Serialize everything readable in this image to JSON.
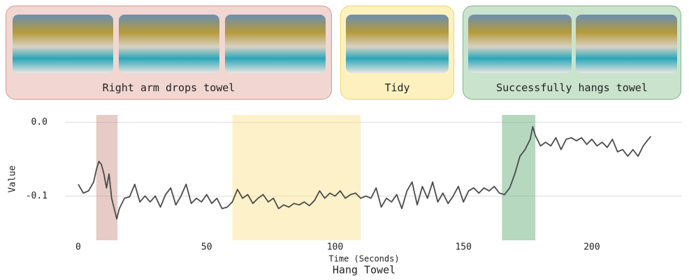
{
  "panels": [
    {
      "caption": "Right arm drops towel",
      "color": "#f1d6d1",
      "border": "#d9988e"
    },
    {
      "caption": "Tidy",
      "color": "#fdf1c0",
      "border": "#f2d660"
    },
    {
      "caption": "Successfully hangs towel",
      "color": "#c9e3cd",
      "border": "#7fb489"
    }
  ],
  "chart_data": {
    "type": "line",
    "title": "Hang Towel",
    "x_label": "Time (Seconds)",
    "y_label": "Value",
    "xlim": [
      -5,
      235
    ],
    "xticks": [
      0,
      50,
      100,
      150,
      200
    ],
    "ylim": [
      -0.16,
      0.01
    ],
    "yticks": [
      {
        "value": 0,
        "label": "0.0"
      },
      -0.1
    ],
    "grid": true,
    "highlights": [
      {
        "x": [
          7,
          15.3
        ],
        "color": "#c98b80"
      },
      {
        "x": [
          60,
          110
        ],
        "color": "#fbe08a"
      },
      {
        "x": [
          165,
          178
        ],
        "color": "#5aa872"
      }
    ],
    "x": [
      0,
      2,
      4,
      6,
      7,
      8,
      9,
      10,
      11,
      12,
      13,
      14,
      15,
      16,
      18,
      20,
      22,
      24,
      26,
      28,
      30,
      32,
      34,
      36,
      38,
      40,
      42,
      44,
      46,
      48,
      50,
      52,
      54,
      56,
      58,
      60,
      62,
      64,
      66,
      68,
      70,
      72,
      74,
      76,
      78,
      80,
      82,
      84,
      86,
      88,
      90,
      92,
      94,
      96,
      98,
      100,
      102,
      104,
      106,
      108,
      110,
      112,
      114,
      116,
      118,
      120,
      122,
      124,
      126,
      128,
      130,
      132,
      134,
      136,
      138,
      140,
      142,
      144,
      146,
      148,
      150,
      152,
      154,
      156,
      158,
      160,
      162,
      164,
      166,
      168,
      170,
      172,
      174,
      176,
      177,
      178,
      180,
      182,
      184,
      186,
      188,
      190,
      192,
      194,
      196,
      198,
      200,
      202,
      204,
      206,
      208,
      210,
      212,
      214,
      216,
      218,
      220,
      222,
      223
    ],
    "series": [
      {
        "name": "Value",
        "color": "#4a4a4a",
        "values": [
          -0.084,
          -0.096,
          -0.093,
          -0.081,
          -0.065,
          -0.053,
          -0.057,
          -0.07,
          -0.089,
          -0.07,
          -0.103,
          -0.117,
          -0.131,
          -0.117,
          -0.103,
          -0.101,
          -0.084,
          -0.108,
          -0.1,
          -0.108,
          -0.1,
          -0.115,
          -0.098,
          -0.089,
          -0.112,
          -0.1,
          -0.084,
          -0.11,
          -0.103,
          -0.108,
          -0.098,
          -0.11,
          -0.103,
          -0.117,
          -0.115,
          -0.108,
          -0.091,
          -0.103,
          -0.098,
          -0.11,
          -0.103,
          -0.098,
          -0.108,
          -0.103,
          -0.117,
          -0.112,
          -0.115,
          -0.11,
          -0.112,
          -0.108,
          -0.113,
          -0.106,
          -0.093,
          -0.103,
          -0.096,
          -0.1,
          -0.093,
          -0.103,
          -0.098,
          -0.096,
          -0.103,
          -0.1,
          -0.103,
          -0.089,
          -0.115,
          -0.103,
          -0.108,
          -0.098,
          -0.117,
          -0.093,
          -0.081,
          -0.112,
          -0.087,
          -0.103,
          -0.081,
          -0.108,
          -0.096,
          -0.11,
          -0.1,
          -0.087,
          -0.108,
          -0.093,
          -0.089,
          -0.096,
          -0.089,
          -0.093,
          -0.087,
          -0.096,
          -0.098,
          -0.089,
          -0.07,
          -0.046,
          -0.037,
          -0.023,
          -0.006,
          -0.018,
          -0.032,
          -0.027,
          -0.032,
          -0.021,
          -0.037,
          -0.023,
          -0.021,
          -0.025,
          -0.021,
          -0.03,
          -0.023,
          -0.032,
          -0.027,
          -0.034,
          -0.023,
          -0.04,
          -0.037,
          -0.046,
          -0.037,
          -0.046,
          -0.032,
          -0.023,
          -0.019
        ]
      }
    ]
  }
}
